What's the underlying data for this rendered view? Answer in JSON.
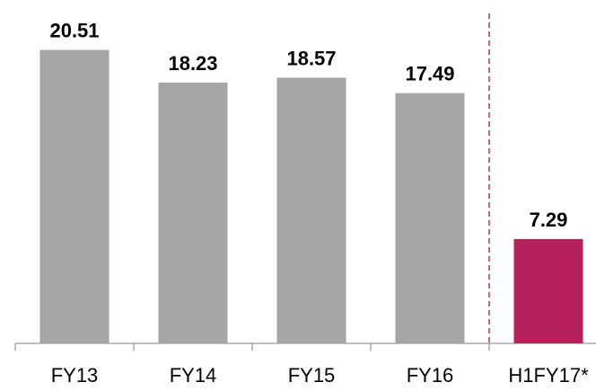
{
  "chart_data": {
    "type": "bar",
    "categories": [
      "FY13",
      "FY14",
      "FY15",
      "FY16",
      "H1FY17*"
    ],
    "values": [
      20.51,
      18.23,
      18.57,
      17.49,
      7.29
    ],
    "colors": [
      "#a6a6a6",
      "#a6a6a6",
      "#a6a6a6",
      "#a6a6a6",
      "#b5215a"
    ],
    "ylim": [
      0,
      24
    ]
  }
}
